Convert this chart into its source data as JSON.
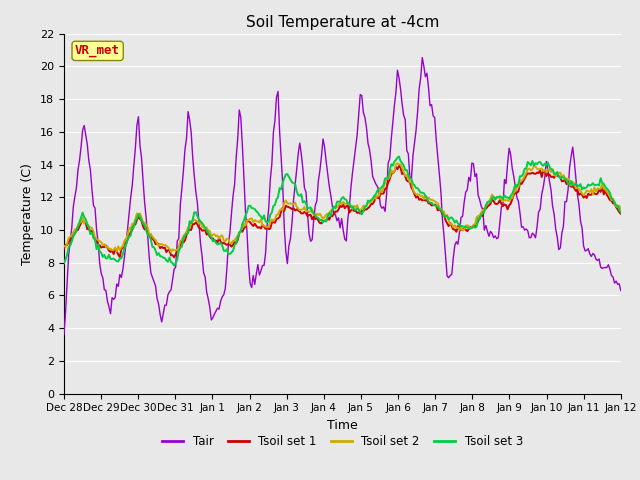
{
  "title": "Soil Temperature at -4cm",
  "xlabel": "Time",
  "ylabel": "Temperature (C)",
  "ylim": [
    0,
    22
  ],
  "yticks": [
    0,
    2,
    4,
    6,
    8,
    10,
    12,
    14,
    16,
    18,
    20,
    22
  ],
  "xtick_labels": [
    "Dec 28",
    "Dec 29",
    "Dec 30",
    "Dec 31",
    "Jan 1",
    "Jan 2",
    "Jan 3",
    "Jan 4",
    "Jan 5",
    "Jan 6",
    "Jan 7",
    "Jan 8",
    "Jan 9",
    "Jan 10",
    "Jan 11",
    "Jan 12"
  ],
  "colors": {
    "tair": "#9900cc",
    "tsoil1": "#cc0000",
    "tsoil2": "#ccaa00",
    "tsoil3": "#00cc44"
  },
  "linewidths": {
    "tair": 1.0,
    "tsoil": 1.4
  },
  "annotation_text": "VR_met",
  "annotation_bg": "#ffff99",
  "annotation_fg": "#cc0000",
  "annotation_border": "#888800",
  "bg_color": "#e8e8e8",
  "plot_bg": "#e8e8e8",
  "legend_labels": [
    "Tair",
    "Tsoil set 1",
    "Tsoil set 2",
    "Tsoil set 3"
  ],
  "grid_color": "#ffffff",
  "tair_ctrl_x": [
    0,
    0.15,
    0.55,
    1.0,
    1.25,
    1.65,
    2.0,
    2.3,
    2.65,
    3.0,
    3.35,
    3.75,
    4.0,
    4.35,
    4.75,
    5.0,
    5.4,
    5.75,
    6.0,
    6.35,
    6.65,
    7.0,
    7.25,
    7.6,
    8.0,
    8.35,
    8.65,
    9.0,
    9.35,
    9.65,
    10.0,
    10.35,
    10.7,
    11.0,
    11.35,
    11.7,
    12.0,
    12.35,
    12.7,
    13.0,
    13.35,
    13.7,
    14.0,
    14.5,
    15.0
  ],
  "tair_ctrl_y": [
    3.5,
    9.0,
    17.0,
    7.5,
    5.0,
    8.5,
    17.0,
    8.0,
    4.5,
    7.5,
    17.5,
    7.5,
    4.5,
    6.5,
    17.5,
    6.5,
    8.0,
    19.0,
    7.5,
    15.5,
    9.0,
    15.5,
    11.0,
    9.5,
    18.5,
    13.0,
    11.0,
    20.0,
    13.0,
    20.5,
    16.5,
    6.5,
    10.5,
    14.5,
    10.0,
    9.5,
    15.0,
    10.0,
    9.5,
    14.0,
    8.5,
    15.0,
    9.0,
    8.0,
    6.5
  ],
  "tsoil_ctrl_x": [
    0,
    0.5,
    1.0,
    1.5,
    2.0,
    2.5,
    3.0,
    3.5,
    4.0,
    4.5,
    5.0,
    5.5,
    6.0,
    6.5,
    7.0,
    7.5,
    8.0,
    8.5,
    9.0,
    9.5,
    10.0,
    10.5,
    11.0,
    11.5,
    12.0,
    12.5,
    13.0,
    13.5,
    14.0,
    14.5,
    15.0
  ],
  "tsoil1_ctrl_y": [
    8.8,
    10.5,
    9.0,
    8.5,
    10.8,
    9.0,
    8.5,
    10.5,
    9.5,
    9.0,
    10.5,
    10.0,
    11.5,
    11.0,
    10.5,
    11.5,
    11.0,
    12.0,
    14.0,
    12.0,
    11.5,
    10.0,
    10.0,
    11.8,
    11.5,
    13.5,
    13.5,
    13.0,
    12.0,
    12.5,
    11.0
  ],
  "tsoil2_ctrl_y": [
    9.0,
    10.7,
    9.2,
    8.7,
    11.0,
    9.2,
    8.7,
    10.7,
    9.7,
    9.2,
    10.7,
    10.2,
    11.7,
    11.2,
    10.7,
    11.7,
    11.2,
    12.2,
    14.2,
    12.2,
    11.7,
    10.2,
    10.2,
    12.0,
    11.7,
    13.7,
    13.7,
    13.2,
    12.2,
    12.7,
    11.2
  ],
  "tsoil3_ctrl_y": [
    8.0,
    11.0,
    8.5,
    8.0,
    11.0,
    8.5,
    8.0,
    11.0,
    9.5,
    8.5,
    11.5,
    10.5,
    13.5,
    11.5,
    10.5,
    12.0,
    11.0,
    12.5,
    14.5,
    12.5,
    11.5,
    10.5,
    10.0,
    12.0,
    12.0,
    14.0,
    14.0,
    13.0,
    12.5,
    13.0,
    11.0
  ]
}
